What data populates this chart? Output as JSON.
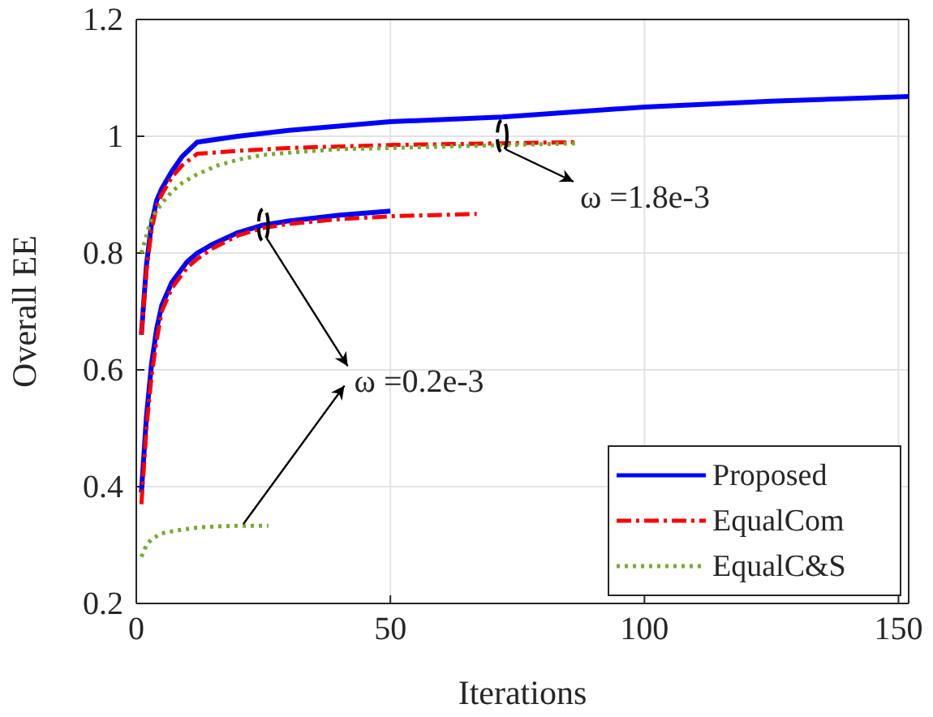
{
  "chart_data": {
    "type": "line",
    "xlabel": "Iterations",
    "ylabel": "Overall EE",
    "xlim": [
      0,
      152
    ],
    "xticks": [
      0,
      50,
      100,
      150
    ],
    "ylim": [
      0.2,
      1.2
    ],
    "yticks": [
      0.2,
      0.4,
      0.6,
      0.8,
      1,
      1.2
    ],
    "grid": true,
    "legend": "bottom right",
    "series": [
      {
        "name": "Proposed",
        "color": "#0000ff",
        "line_style": "solid",
        "x": [
          1,
          2,
          3,
          4,
          5,
          7,
          9,
          12,
          20,
          30,
          50,
          72,
          100,
          125,
          152
        ],
        "values": [
          0.66,
          0.78,
          0.85,
          0.89,
          0.91,
          0.94,
          0.965,
          0.99,
          1.0,
          1.01,
          1.025,
          1.033,
          1.05,
          1.06,
          1.068
        ]
      },
      {
        "name": "EqualCom",
        "color": "#ff0000",
        "line_style": "dashdot",
        "x": [
          1,
          2,
          3,
          4,
          5,
          7,
          9,
          12,
          20,
          30,
          50,
          72,
          87
        ],
        "values": [
          0.66,
          0.77,
          0.84,
          0.88,
          0.9,
          0.93,
          0.95,
          0.97,
          0.975,
          0.98,
          0.985,
          0.988,
          0.99
        ]
      },
      {
        "name": "EqualC&S",
        "color": "#77ac30",
        "line_style": "dotted",
        "x": [
          1,
          2,
          3,
          5,
          7,
          9,
          12,
          16,
          20,
          25,
          30,
          40,
          50,
          72,
          87
        ],
        "values": [
          0.8,
          0.83,
          0.86,
          0.885,
          0.905,
          0.92,
          0.935,
          0.95,
          0.96,
          0.968,
          0.972,
          0.978,
          0.98,
          0.985,
          0.988
        ]
      },
      {
        "color": "#0000ff",
        "line_style": "solid",
        "x": [
          1,
          2,
          3,
          4,
          5,
          7,
          10,
          12,
          15,
          20,
          25,
          30,
          40,
          50
        ],
        "values": [
          0.39,
          0.52,
          0.61,
          0.67,
          0.71,
          0.75,
          0.785,
          0.8,
          0.815,
          0.835,
          0.848,
          0.855,
          0.865,
          0.872
        ]
      },
      {
        "color": "#ff0000",
        "line_style": "dashdot",
        "x": [
          1,
          2,
          3,
          4,
          5,
          7,
          10,
          12,
          15,
          20,
          25,
          30,
          40,
          50,
          67
        ],
        "values": [
          0.37,
          0.5,
          0.59,
          0.65,
          0.7,
          0.74,
          0.775,
          0.79,
          0.808,
          0.83,
          0.843,
          0.85,
          0.858,
          0.863,
          0.867
        ]
      },
      {
        "color": "#77ac30",
        "line_style": "dotted",
        "x": [
          1,
          2,
          3,
          5,
          8,
          12,
          16,
          20,
          26
        ],
        "values": [
          0.28,
          0.3,
          0.31,
          0.32,
          0.325,
          0.33,
          0.332,
          0.333,
          0.333
        ]
      }
    ],
    "annotations": [
      {
        "text": "ω =1.8e-3",
        "x": 72,
        "y": 1.0
      },
      {
        "text": "ω =0.2e-3",
        "x": 25,
        "y": 0.848
      }
    ]
  }
}
